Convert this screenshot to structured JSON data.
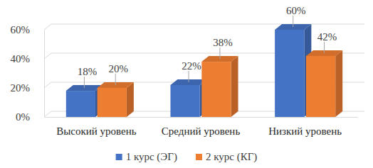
{
  "chart_data": {
    "type": "bar",
    "categories": [
      "Высокий уровень",
      "Средний уровень",
      "Низкий уровень"
    ],
    "series": [
      {
        "name": "1 курс (ЭГ)",
        "color": "#4472c4",
        "values": [
          18,
          22,
          60
        ],
        "value_labels": [
          "18%",
          "22%",
          "60%"
        ]
      },
      {
        "name": "2 курс (КГ)",
        "color": "#ed7d31",
        "values": [
          20,
          38,
          42
        ],
        "value_labels": [
          "20%",
          "38%",
          "42%"
        ]
      }
    ],
    "ylim": [
      0,
      60
    ],
    "yticks": [
      {
        "value": 0,
        "label": "0%"
      },
      {
        "value": 20,
        "label": "20%"
      },
      {
        "value": 40,
        "label": "40%"
      },
      {
        "value": 60,
        "label": "60%"
      }
    ],
    "grid": true,
    "data_labels": true,
    "legend": "bottom"
  }
}
